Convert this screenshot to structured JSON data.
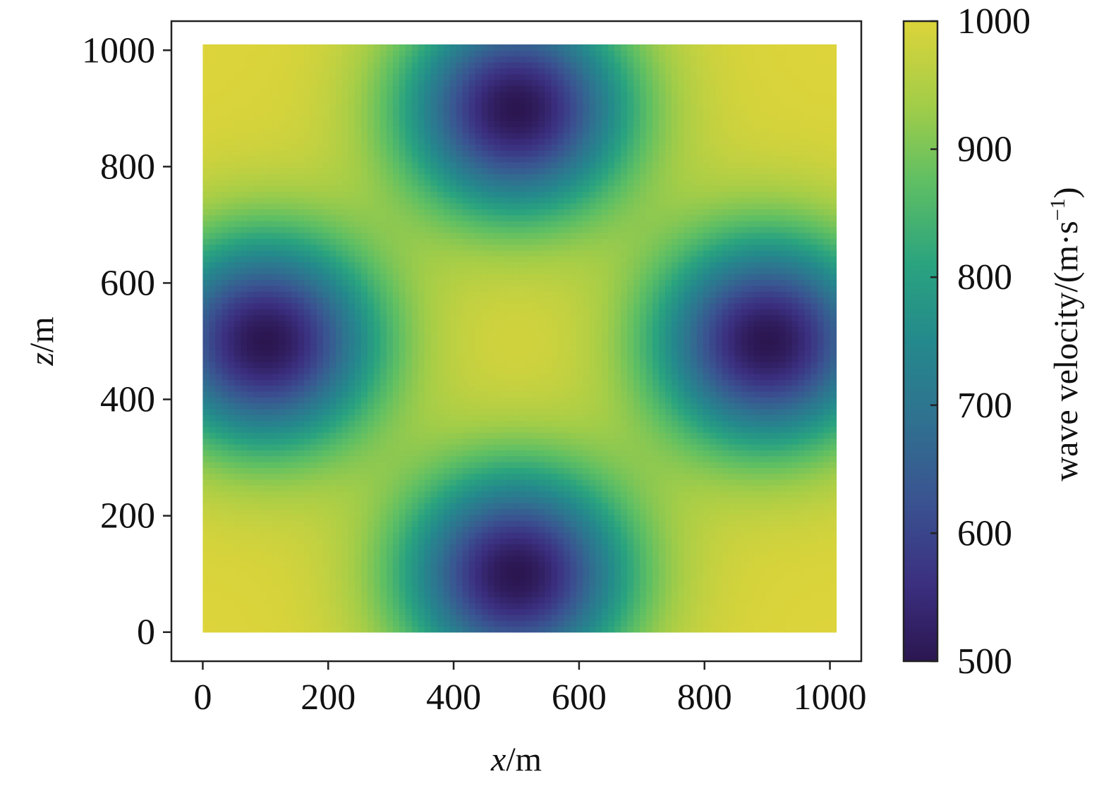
{
  "chart_data": {
    "type": "heatmap",
    "xlabel": {
      "var": "x",
      "unit": "/m"
    },
    "ylabel": {
      "var": "z",
      "unit": "/m"
    },
    "xlim": [
      -50,
      1050
    ],
    "ylim": [
      -50,
      1050
    ],
    "grid": false,
    "data_extent": {
      "x": [
        0,
        1010
      ],
      "z": [
        0,
        1010
      ]
    },
    "x_ticks": [
      0,
      200,
      400,
      600,
      800,
      1000
    ],
    "y_ticks": [
      0,
      200,
      400,
      600,
      800,
      1000
    ],
    "x_tick_labels": [
      "0",
      "200",
      "400",
      "600",
      "800",
      "1000"
    ],
    "y_tick_labels": [
      "0",
      "200",
      "400",
      "600",
      "800",
      "1000"
    ],
    "colorbar": {
      "label": "wave velocity/(m·s",
      "label_sup": "−1",
      "label_close": ")",
      "range": [
        500,
        1000
      ],
      "ticks": [
        500,
        600,
        700,
        800,
        900,
        1000
      ],
      "tick_labels": [
        "500",
        "600",
        "700",
        "800",
        "900",
        "1000"
      ],
      "colormap": "viridis"
    },
    "background_velocity": 1000,
    "anomalies": [
      {
        "x": 100,
        "z": 500,
        "min_velocity": 500
      },
      {
        "x": 500,
        "z": 900,
        "min_velocity": 500
      },
      {
        "x": 900,
        "z": 500,
        "min_velocity": 500
      },
      {
        "x": 500,
        "z": 100,
        "min_velocity": 500
      }
    ]
  }
}
